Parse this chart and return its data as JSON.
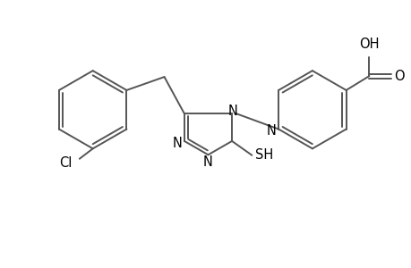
{
  "background_color": "#ffffff",
  "line_color": "#555555",
  "text_color": "#000000",
  "line_width": 1.4,
  "font_size": 10.5,
  "fig_width": 4.6,
  "fig_height": 3.0,
  "dpi": 100,
  "xlim": [
    0,
    9.2
  ],
  "ylim": [
    0,
    6.0
  ]
}
